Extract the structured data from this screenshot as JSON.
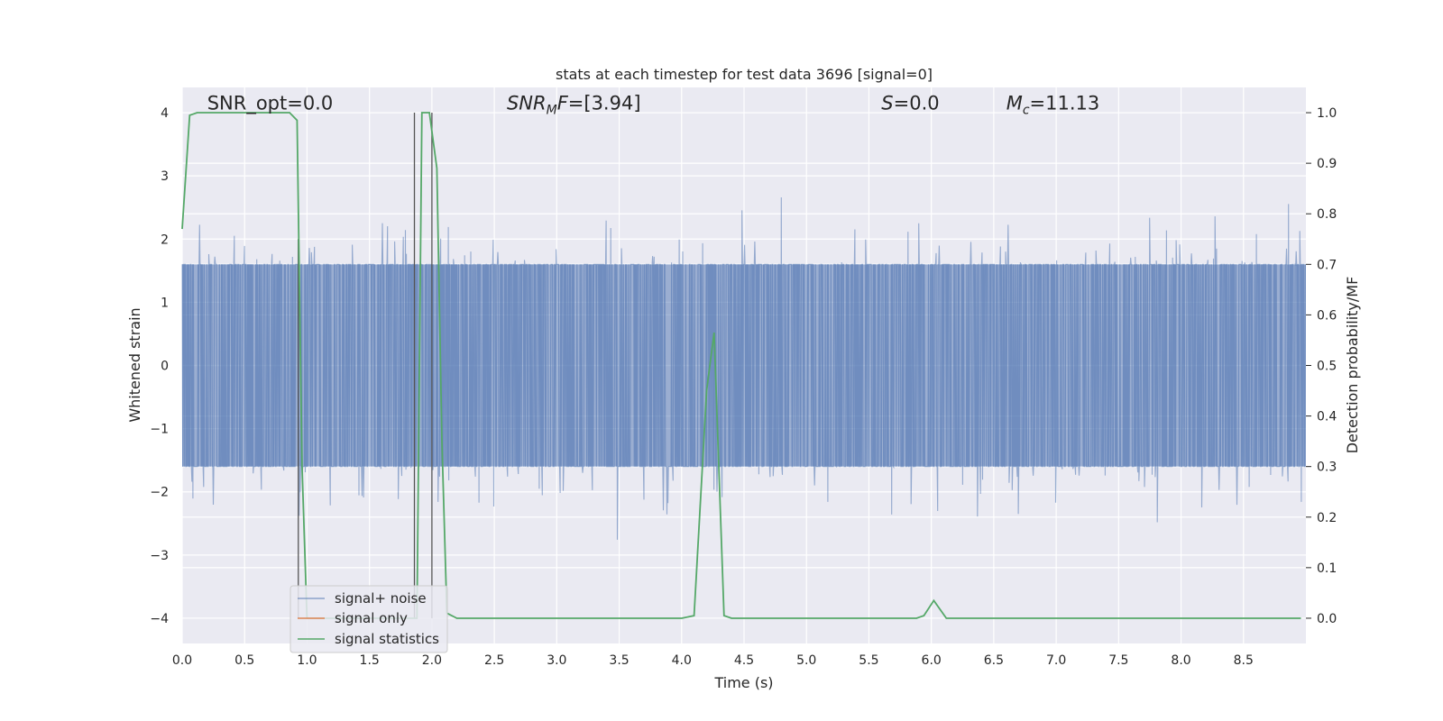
{
  "chart_data": {
    "type": "line",
    "title": "stats at each timestep for test data 3696 [signal=0]",
    "xlabel": "Time (s)",
    "ylabel_left": "Whitened strain",
    "ylabel_right": "Detection probability/MF",
    "xlim": [
      0.0,
      9.0
    ],
    "ylim_left": [
      -4.4,
      4.4
    ],
    "ylim_right": [
      -0.05,
      1.05
    ],
    "grid": true,
    "legend_position": "lower-left",
    "x_ticks": [
      0.0,
      0.5,
      1.0,
      1.5,
      2.0,
      2.5,
      3.0,
      3.5,
      4.0,
      4.5,
      5.0,
      5.5,
      6.0,
      6.5,
      7.0,
      7.5,
      8.0,
      8.5
    ],
    "x_tick_labels": [
      "0.0",
      "0.5",
      "1.0",
      "1.5",
      "2.0",
      "2.5",
      "3.0",
      "3.5",
      "4.0",
      "4.5",
      "5.0",
      "5.5",
      "6.0",
      "6.5",
      "7.0",
      "7.5",
      "8.0",
      "8.5"
    ],
    "y_left_ticks": [
      -4,
      -3,
      -2,
      -1,
      0,
      1,
      2,
      3,
      4
    ],
    "y_left_tick_labels": [
      "−4",
      "−3",
      "−2",
      "−1",
      "0",
      "1",
      "2",
      "3",
      "4"
    ],
    "y_right_ticks": [
      0.0,
      0.1,
      0.2,
      0.3,
      0.4,
      0.5,
      0.6,
      0.7,
      0.8,
      0.9,
      1.0
    ],
    "y_right_tick_labels": [
      "0.0",
      "0.1",
      "0.2",
      "0.3",
      "0.4",
      "0.5",
      "0.6",
      "0.7",
      "0.8",
      "0.9",
      "1.0"
    ],
    "annotations": [
      {
        "id": "snr-opt",
        "text": "SNR_opt=0.0",
        "x": 0.2,
        "y": 4.15
      },
      {
        "id": "snr-mf",
        "text": "SNR_MF=[3.94]",
        "x": 2.6,
        "y": 4.15
      },
      {
        "id": "s-stat",
        "text": "S=0.0",
        "x": 5.6,
        "y": 4.15
      },
      {
        "id": "mc",
        "text": "M_c=11.13",
        "x": 6.6,
        "y": 4.15
      }
    ],
    "vlines": [
      {
        "x": 0.93,
        "y0": -4.0,
        "y1": 2.0
      },
      {
        "x": 1.86,
        "y0": -4.0,
        "y1": 4.0
      },
      {
        "x": 2.0,
        "y0": -4.0,
        "y1": 4.0
      }
    ],
    "series": [
      {
        "name": "signal+ noise",
        "color": "#4c72b0",
        "axis": "left",
        "style": "noise",
        "duration": 9.0,
        "n": 2200,
        "band": 1.6,
        "peak_abs": 4.0
      },
      {
        "name": "signal only",
        "color": "#dd8452",
        "axis": "left",
        "x": [],
        "y": []
      },
      {
        "name": "signal statistics",
        "color": "#55a868",
        "axis": "right",
        "x": [
          0.0,
          0.06,
          0.12,
          0.86,
          0.92,
          0.96,
          1.0,
          1.8,
          1.84,
          1.88,
          1.92,
          1.98,
          2.04,
          2.08,
          2.12,
          2.2,
          4.0,
          4.1,
          4.2,
          4.26,
          4.34,
          4.4,
          5.88,
          5.94,
          6.02,
          6.12,
          8.96
        ],
        "y": [
          0.77,
          0.995,
          1.0,
          1.0,
          0.985,
          0.3,
          0.0,
          0.0,
          0.0,
          0.0,
          1.0,
          1.0,
          0.89,
          0.35,
          0.01,
          0.0,
          0.0,
          0.005,
          0.45,
          0.565,
          0.005,
          0.0,
          0.0,
          0.005,
          0.035,
          0.0,
          0.0
        ]
      }
    ]
  }
}
